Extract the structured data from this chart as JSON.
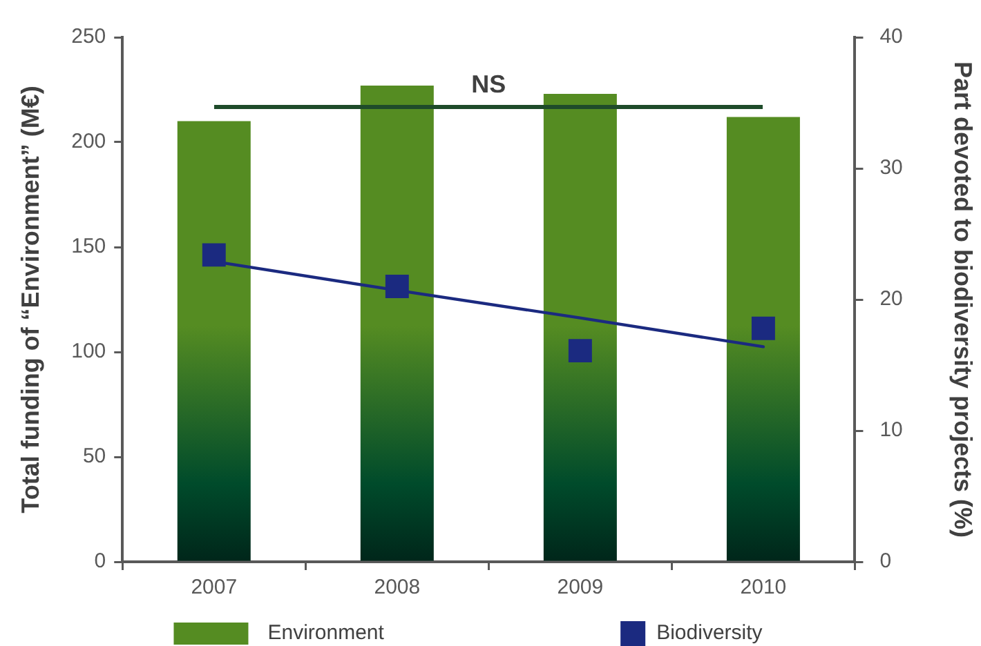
{
  "chart_data": {
    "type": "bar",
    "categories": [
      "2007",
      "2008",
      "2009",
      "2010"
    ],
    "ylabel": "Total funding of “Environment” (M€)",
    "y2label": "Part devoted to biodiversity projects (%)",
    "ylim": [
      0,
      250
    ],
    "yticks": [
      0,
      50,
      100,
      150,
      200,
      250
    ],
    "y2lim": [
      0,
      40
    ],
    "y2ticks": [
      0,
      10,
      20,
      30,
      40
    ],
    "series": [
      {
        "name": "Environment",
        "color": "#558c22",
        "values": [
          210,
          227,
          223,
          212
        ]
      },
      {
        "name": "Biodiversity",
        "type": "scatter",
        "axis": "y2",
        "color": "#1b2a80",
        "marker": "square",
        "values": [
          23.4,
          21.0,
          16.1,
          17.8
        ]
      },
      {
        "type": "line",
        "axis": "y2",
        "color": "#1b2a80",
        "values": [
          22.9,
          20.7,
          18.6,
          16.4
        ]
      }
    ],
    "annotations": [
      "NS"
    ],
    "legend": "bottom",
    "grid": false
  }
}
